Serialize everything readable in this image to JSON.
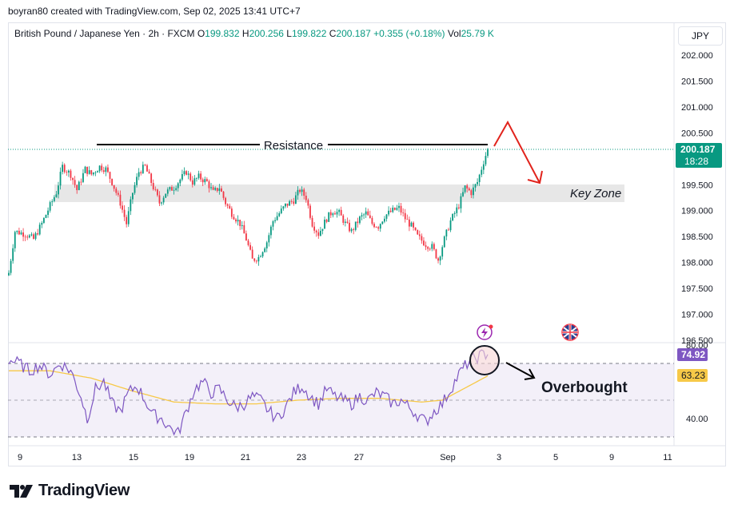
{
  "header": {
    "credit": "boyran80 created with TradingView.com, Sep 02, 2025 13:41 UTC+7",
    "currency": "JPY"
  },
  "legend": {
    "symbol": "British Pound / Japanese Yen · 2h · FXCM",
    "open_label": "O",
    "open": "199.832",
    "high_label": "H",
    "high": "200.256",
    "low_label": "L",
    "low": "199.822",
    "close_label": "C",
    "close": "200.187",
    "change": "+0.355 (+0.18%)",
    "vol_label": "Vol",
    "vol": "25.79 K"
  },
  "price_badge": {
    "price": "200.187",
    "countdown": "18:28"
  },
  "rsi_badges": {
    "rsi": "74.92",
    "ma": "63.23"
  },
  "annotations": {
    "resistance": "Resistance",
    "key_zone": "Key Zone",
    "overbought": "Overbought"
  },
  "brand": {
    "name": "TradingView"
  },
  "colors": {
    "up": "#089981",
    "down": "#f23645",
    "rsi_line": "#7e57c2",
    "rsi_ma": "#f7c948",
    "zone": "#e3e3e3",
    "arrow": "#e1241d"
  },
  "chart_data": [
    {
      "type": "candlestick",
      "symbol": "GBPJPY",
      "timeframe": "2h",
      "x_ticks": [
        "9",
        "13",
        "15",
        "19",
        "21",
        "23",
        "27",
        "Sep",
        "3",
        "5",
        "9",
        "11"
      ],
      "y_ticks": [
        "202.000",
        "201.500",
        "201.000",
        "200.500",
        "199.500",
        "199.000",
        "198.500",
        "198.000",
        "197.500",
        "197.000",
        "196.500"
      ],
      "ylim": [
        196.5,
        202.3
      ],
      "resistance_level": 199.93,
      "key_zone": [
        199.17,
        199.5
      ],
      "last_price": 200.187,
      "close_path": [
        [
          0,
          197.8
        ],
        [
          3,
          198.6
        ],
        [
          8,
          198.55
        ],
        [
          12,
          198.45
        ],
        [
          16,
          198.75
        ],
        [
          20,
          199.1
        ],
        [
          23,
          199.35
        ],
        [
          26,
          199.85
        ],
        [
          30,
          199.7
        ],
        [
          33,
          199.4
        ],
        [
          37,
          199.8
        ],
        [
          40,
          199.7
        ],
        [
          44,
          199.85
        ],
        [
          47,
          199.8
        ],
        [
          50,
          199.55
        ],
        [
          54,
          199.15
        ],
        [
          57,
          198.75
        ],
        [
          60,
          199.35
        ],
        [
          63,
          199.75
        ],
        [
          66,
          199.85
        ],
        [
          70,
          199.45
        ],
        [
          73,
          199.15
        ],
        [
          76,
          199.35
        ],
        [
          80,
          199.45
        ],
        [
          83,
          199.6
        ],
        [
          86,
          199.75
        ],
        [
          89,
          199.55
        ],
        [
          92,
          199.65
        ],
        [
          96,
          199.55
        ],
        [
          99,
          199.35
        ],
        [
          102,
          199.45
        ],
        [
          105,
          199.15
        ],
        [
          108,
          198.95
        ],
        [
          112,
          198.75
        ],
        [
          115,
          198.45
        ],
        [
          118,
          198.05
        ],
        [
          121,
          198.1
        ],
        [
          125,
          198.4
        ],
        [
          128,
          198.8
        ],
        [
          131,
          198.95
        ],
        [
          134,
          199.1
        ],
        [
          138,
          199.2
        ],
        [
          141,
          199.4
        ],
        [
          144,
          199.25
        ],
        [
          147,
          198.75
        ],
        [
          150,
          198.55
        ],
        [
          154,
          198.85
        ],
        [
          157,
          199.0
        ],
        [
          160,
          198.95
        ],
        [
          163,
          198.75
        ],
        [
          166,
          198.6
        ],
        [
          170,
          198.85
        ],
        [
          173,
          198.95
        ],
        [
          176,
          198.75
        ],
        [
          179,
          198.7
        ],
        [
          182,
          198.9
        ],
        [
          186,
          199.0
        ],
        [
          189,
          199.05
        ],
        [
          192,
          198.85
        ],
        [
          195,
          198.7
        ],
        [
          198,
          198.5
        ],
        [
          202,
          198.35
        ],
        [
          205,
          198.3
        ],
        [
          208,
          198.05
        ],
        [
          211,
          198.45
        ],
        [
          214,
          198.8
        ],
        [
          218,
          199.1
        ],
        [
          221,
          199.45
        ],
        [
          224,
          199.35
        ],
        [
          227,
          199.55
        ],
        [
          230,
          199.95
        ],
        [
          232,
          200.19
        ]
      ]
    },
    {
      "type": "line",
      "name": "RSI",
      "y_ticks": [
        "80.00",
        "40.00"
      ],
      "ylim": [
        15,
        92
      ],
      "levels": [
        70,
        50,
        30
      ],
      "last": 74.92,
      "ma_last": 63.23,
      "rsi_path": [
        [
          0,
          72
        ],
        [
          5,
          70
        ],
        [
          10,
          66
        ],
        [
          15,
          69
        ],
        [
          20,
          64
        ],
        [
          25,
          70
        ],
        [
          30,
          66
        ],
        [
          35,
          52
        ],
        [
          38,
          40
        ],
        [
          42,
          56
        ],
        [
          46,
          60
        ],
        [
          50,
          48
        ],
        [
          54,
          44
        ],
        [
          58,
          54
        ],
        [
          62,
          58
        ],
        [
          66,
          50
        ],
        [
          70,
          42
        ],
        [
          74,
          40
        ],
        [
          78,
          35
        ],
        [
          82,
          32
        ],
        [
          86,
          44
        ],
        [
          90,
          56
        ],
        [
          94,
          60
        ],
        [
          98,
          54
        ],
        [
          102,
          56
        ],
        [
          106,
          50
        ],
        [
          110,
          46
        ],
        [
          114,
          48
        ],
        [
          118,
          52
        ],
        [
          122,
          50
        ],
        [
          126,
          44
        ],
        [
          130,
          40
        ],
        [
          134,
          46
        ],
        [
          138,
          54
        ],
        [
          142,
          58
        ],
        [
          146,
          52
        ],
        [
          150,
          48
        ],
        [
          154,
          56
        ],
        [
          158,
          52
        ],
        [
          162,
          50
        ],
        [
          166,
          48
        ],
        [
          170,
          52
        ],
        [
          174,
          50
        ],
        [
          178,
          54
        ],
        [
          182,
          52
        ],
        [
          186,
          48
        ],
        [
          190,
          50
        ],
        [
          194,
          46
        ],
        [
          198,
          42
        ],
        [
          202,
          38
        ],
        [
          206,
          44
        ],
        [
          210,
          48
        ],
        [
          214,
          56
        ],
        [
          218,
          64
        ],
        [
          222,
          70
        ],
        [
          226,
          73
        ],
        [
          230,
          75
        ],
        [
          232,
          74.92
        ]
      ],
      "ma_path": [
        [
          0,
          66
        ],
        [
          20,
          66
        ],
        [
          40,
          62
        ],
        [
          60,
          55
        ],
        [
          80,
          49
        ],
        [
          100,
          48
        ],
        [
          120,
          48
        ],
        [
          140,
          50
        ],
        [
          160,
          51
        ],
        [
          180,
          51
        ],
        [
          200,
          49
        ],
        [
          210,
          50
        ],
        [
          220,
          56
        ],
        [
          232,
          63.23
        ]
      ]
    }
  ]
}
